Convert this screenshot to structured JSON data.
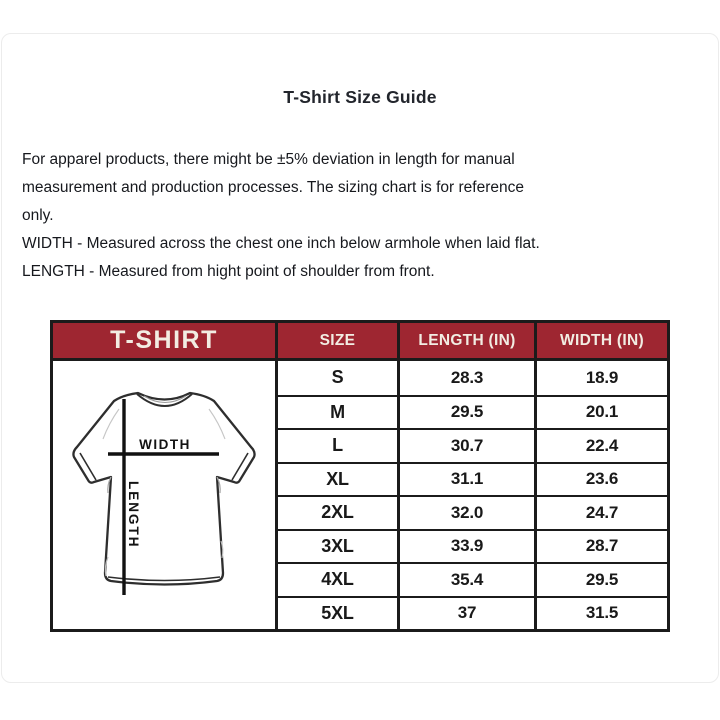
{
  "page": {
    "title": "T-Shirt Size Guide",
    "description_lines": [
      "For apparel products, there might be ±5% deviation in length for manual",
      "measurement and production processes. The sizing chart is for reference",
      "only.",
      "WIDTH - Measured across the chest one inch below armhole when laid flat.",
      "LENGTH - Measured from hight point of shoulder from front."
    ]
  },
  "table": {
    "corner_label": "T-SHIRT",
    "columns": [
      "SIZE",
      "LENGTH (IN)",
      "WIDTH (IN)"
    ],
    "rows": [
      {
        "size": "S",
        "length": "28.3",
        "width": "18.9"
      },
      {
        "size": "M",
        "length": "29.5",
        "width": "20.1"
      },
      {
        "size": "L",
        "length": "30.7",
        "width": "22.4"
      },
      {
        "size": "XL",
        "length": "31.1",
        "width": "23.6"
      },
      {
        "size": "2XL",
        "length": "32.0",
        "width": "24.7"
      },
      {
        "size": "3XL",
        "length": "33.9",
        "width": "28.7"
      },
      {
        "size": "4XL",
        "length": "35.4",
        "width": "29.5"
      },
      {
        "size": "5XL",
        "length": "37",
        "width": "31.5"
      }
    ]
  },
  "illustration": {
    "width_label": "WIDTH",
    "length_label": "LENGTH"
  },
  "colors": {
    "header_bg": "#9E2631",
    "header_text": "#F2EDE3",
    "table_border": "#1B1B1B"
  }
}
